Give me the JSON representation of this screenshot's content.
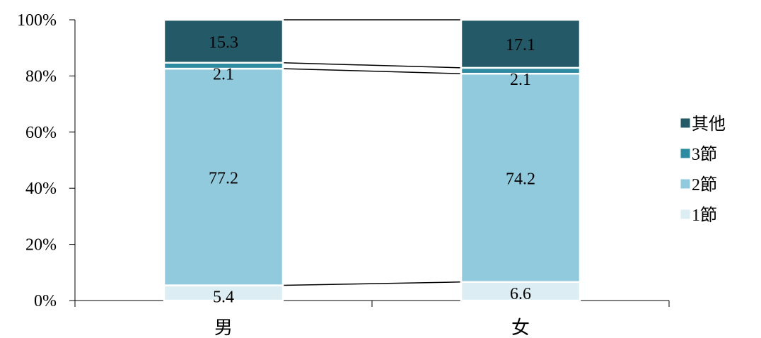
{
  "chart_data": {
    "type": "bar",
    "stacked": true,
    "percent": true,
    "categories": [
      "男",
      "女"
    ],
    "series": [
      {
        "name": "1節",
        "values": [
          5.4,
          6.6
        ],
        "color": "#dcedf3"
      },
      {
        "name": "2節",
        "values": [
          77.2,
          74.2
        ],
        "color": "#92cadd"
      },
      {
        "name": "3節",
        "values": [
          2.1,
          2.1
        ],
        "color": "#2e8aa0"
      },
      {
        "name": "其他",
        "values": [
          15.3,
          17.1
        ],
        "color": "#245968"
      }
    ],
    "ylim": [
      0,
      100
    ],
    "y_ticks": [
      "0%",
      "20%",
      "40%",
      "60%",
      "80%",
      "100%"
    ],
    "legend_position": "right",
    "grid": false,
    "series_lines": true
  }
}
